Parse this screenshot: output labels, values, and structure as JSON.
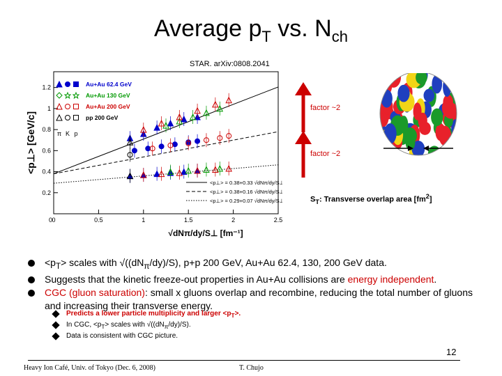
{
  "title": {
    "main": "Average p",
    "sub1": "T",
    "mid": " vs. N",
    "sub2": "ch"
  },
  "reference": "STAR, arXiv:0808.2041",
  "annotations": {
    "factor_top": "factor ~2",
    "factor_bottom": "factor ~2",
    "st_label": "S",
    "st_sub": "T",
    "st_text": ": Transverse overlap area [fm",
    "st_sup": "2",
    "st_end": "]"
  },
  "bullets": [
    {
      "parts": [
        "<p",
        "T",
        "> scales with √((dN",
        "π",
        "/dy)/S), p+p 200 GeV, Au+Au 62.4, 130, 200 GeV data."
      ]
    },
    {
      "pre": "Suggests that the kinetic freeze-out properties in Au+Au collisions are ",
      "emph": "energy independent",
      "post": "."
    },
    {
      "emph": "CGC (gluon saturation)",
      "post": ": small x gluons overlap and recombine, reducing the total number of gluons and increasing their transverse energy."
    }
  ],
  "sub_bullets": [
    {
      "text": "Predicts a lower particle multiplicity and larger <p",
      "sub": "T",
      "end": ">.",
      "red": true
    },
    {
      "text": "In CGC, <p",
      "sub": "T",
      "end": "> scales with √((dN",
      "sub2": "π",
      "end2": "/dy)/S).",
      "red": false
    },
    {
      "text": "Data is consistent with CGC picture.",
      "red": false
    }
  ],
  "page_number": "12",
  "footer": {
    "left": "Heavy Ion Café, Univ. of Tokyo (Dec. 6, 2008)",
    "right": "T. Chujo"
  },
  "colors": {
    "red": "#cc0000",
    "blue": "#0000cc",
    "green": "#009900",
    "black": "#000000",
    "nucleon_palette": [
      "#e8212b",
      "#1f3fbf",
      "#1a9a2a",
      "#f2d516",
      "#e8212b",
      "#1f3fbf"
    ]
  },
  "chart_data": {
    "type": "scatter",
    "ylabel": "<p⊥> [GeV/c]",
    "xlabel": "√dNπ/dy/S⊥ [fm⁻¹]",
    "xlim": [
      0,
      2.5
    ],
    "ylim": [
      0,
      1.35
    ],
    "xticks": [
      "0",
      "0.5",
      "1",
      "1.5",
      "2",
      "2.5"
    ],
    "yticks": [
      "0.2",
      "0.4",
      "0.6",
      "0.8",
      "1",
      "1.2"
    ],
    "legend": {
      "position": "top-left",
      "entries": [
        {
          "label": "Au+Au 62.4 GeV",
          "color": "#0000cc"
        },
        {
          "label": "Au+Au 130 GeV",
          "color": "#009900"
        },
        {
          "label": "Au+Au 200 GeV",
          "color": "#cc0000"
        },
        {
          "label": "pp 200 GeV",
          "color": "#000000"
        }
      ],
      "species": [
        "π",
        "K",
        "p"
      ]
    },
    "fit_labels": [
      {
        "text": "<p⊥> = 0.38+0.33 √dNπ/dy/S⊥",
        "style": "solid"
      },
      {
        "text": "<p⊥> = 0.38+0.16 √dNπ/dy/S⊥",
        "style": "dashed"
      },
      {
        "text": "<p⊥> = 0.29+0.07 √dNπ/dy/S⊥",
        "style": "dotted"
      }
    ],
    "fits": [
      {
        "intercept": 0.38,
        "slope": 0.33,
        "style": "solid"
      },
      {
        "intercept": 0.38,
        "slope": 0.16,
        "style": "dashed"
      },
      {
        "intercept": 0.29,
        "slope": 0.07,
        "style": "dotted"
      }
    ],
    "series": [
      {
        "species": "p",
        "color": "#0000cc",
        "marker": "triangle-filled",
        "x": [
          0.85,
          1.0,
          1.15,
          1.3,
          1.45,
          1.6
        ],
        "y": [
          0.72,
          0.76,
          0.82,
          0.86,
          0.9,
          0.92
        ]
      },
      {
        "species": "p",
        "color": "#009900",
        "marker": "triangle-open",
        "x": [
          1.25,
          1.4,
          1.55,
          1.7,
          1.85
        ],
        "y": [
          0.84,
          0.88,
          0.92,
          0.96,
          1.0
        ]
      },
      {
        "species": "p",
        "color": "#cc0000",
        "marker": "triangle-open",
        "x": [
          1.0,
          1.2,
          1.4,
          1.6,
          1.8,
          1.95
        ],
        "y": [
          0.8,
          0.86,
          0.92,
          0.98,
          1.04,
          1.08
        ]
      },
      {
        "species": "K",
        "color": "#0000cc",
        "marker": "circle-filled",
        "x": [
          0.9,
          1.05,
          1.2,
          1.35,
          1.5,
          1.6
        ],
        "y": [
          0.6,
          0.62,
          0.64,
          0.66,
          0.68,
          0.69
        ]
      },
      {
        "species": "K",
        "color": "#cc0000",
        "marker": "circle-open",
        "x": [
          1.1,
          1.3,
          1.5,
          1.7,
          1.85,
          1.95
        ],
        "y": [
          0.62,
          0.65,
          0.67,
          0.7,
          0.72,
          0.74
        ]
      },
      {
        "species": "π",
        "color": "#0000cc",
        "marker": "triangle-filled",
        "x": [
          0.85,
          1.0,
          1.15,
          1.3,
          1.45,
          1.6
        ],
        "y": [
          0.36,
          0.37,
          0.38,
          0.39,
          0.4,
          0.41
        ]
      },
      {
        "species": "π",
        "color": "#009900",
        "marker": "triangle-open",
        "x": [
          1.3,
          1.5,
          1.7,
          1.85
        ],
        "y": [
          0.4,
          0.41,
          0.42,
          0.43
        ]
      },
      {
        "species": "π",
        "color": "#cc0000",
        "marker": "triangle-open",
        "x": [
          1.0,
          1.2,
          1.4,
          1.6,
          1.8,
          1.95
        ],
        "y": [
          0.37,
          0.38,
          0.39,
          0.41,
          0.42,
          0.43
        ]
      },
      {
        "species": "p",
        "color": "#000000",
        "marker": "triangle-open",
        "x": [
          0.85
        ],
        "y": [
          0.68
        ]
      },
      {
        "species": "K",
        "color": "#000000",
        "marker": "circle-open",
        "x": [
          0.85
        ],
        "y": [
          0.56
        ]
      },
      {
        "species": "π",
        "color": "#000000",
        "marker": "triangle-open",
        "x": [
          0.85
        ],
        "y": [
          0.36
        ]
      }
    ]
  }
}
